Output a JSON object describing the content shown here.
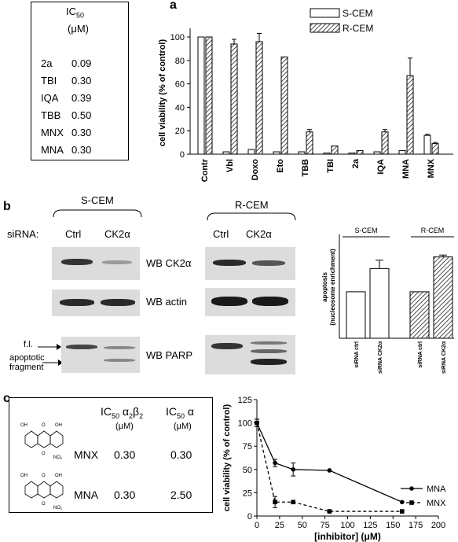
{
  "panel_a": {
    "label": "a",
    "table": {
      "header_line1": "IC",
      "header_sub": "50",
      "header_line2": "(μM)",
      "rows": [
        {
          "name": "2a",
          "value": "0.09"
        },
        {
          "name": "TBI",
          "value": "0.30"
        },
        {
          "name": "IQA",
          "value": "0.39"
        },
        {
          "name": "TBB",
          "value": "0.50"
        },
        {
          "name": "MNX",
          "value": "0.30"
        },
        {
          "name": "MNA",
          "value": "0.30"
        }
      ]
    }
  },
  "panel_b": {
    "label": "b",
    "s_cem": "S-CEM",
    "r_cem": "R-CEM",
    "sirna_label": "siRNA:",
    "lane_ctrl": "Ctrl",
    "lane_ck2": "CK2α",
    "wb_ck2": "WB CK2α",
    "wb_actin": "WB actin",
    "wb_parp": "WB PARP",
    "fl_label": "f.l.",
    "apoptotic_label_1": "apoptotic",
    "apoptotic_label_2": "fragment"
  },
  "panel_c": {
    "label": "c",
    "col1_header": "IC",
    "col1_sub": "50",
    "col1_greek": "α",
    "col1_sub2": "2",
    "col1_greek2": "β",
    "col1_sub3": "2",
    "col2_header": "IC",
    "col2_sub": "50",
    "col2_greek": "α",
    "unit": "(μM)",
    "oh_label": "OH",
    "o_label": "O",
    "no2_label": "NO",
    "no2_sub": "2",
    "rows": [
      {
        "name": "MNX",
        "v1": "0.30",
        "v2": "0.30"
      },
      {
        "name": "MNA",
        "v1": "0.30",
        "v2": "2.50"
      }
    ]
  },
  "chart_data": [
    {
      "type": "bar",
      "categories": [
        "Contr",
        "Vbl",
        "Doxo",
        "Eto",
        "TBB",
        "TBI",
        "2a",
        "IQA",
        "MNA",
        "MNX"
      ],
      "series": [
        {
          "name": "S-CEM",
          "values": [
            100,
            2,
            4,
            2,
            2,
            1,
            1,
            2,
            3,
            16
          ],
          "errors": [
            0,
            0,
            0,
            0,
            0,
            0,
            0,
            0,
            0,
            1
          ]
        },
        {
          "name": "R-CEM",
          "values": [
            100,
            94,
            96,
            83,
            19,
            7,
            3,
            19,
            67,
            9
          ],
          "errors": [
            0,
            4,
            7,
            0,
            2,
            0,
            0,
            2,
            15,
            1
          ]
        }
      ],
      "ylabel": "cell viability (% of control)",
      "yticks": [
        0,
        20,
        40,
        60,
        80,
        100
      ],
      "ylim": [
        0,
        110
      ],
      "legend": "top-right",
      "colors": {
        "S-CEM": "#ffffff",
        "R-CEM": "hatched"
      }
    },
    {
      "type": "bar",
      "categories": [
        "siRNA ctrl",
        "siRNA CK2α",
        "siRNA ctrl",
        "siRNA CK2α"
      ],
      "groups": [
        "S-CEM",
        "S-CEM",
        "R-CEM",
        "R-CEM"
      ],
      "values": [
        1.0,
        1.5,
        1.0,
        1.75
      ],
      "errors": [
        0,
        0.18,
        0,
        0.04
      ],
      "ylabel_line1": "apoptosis",
      "ylabel_line2": "(nucleosome enrichment)",
      "ylim": [
        0,
        2.2
      ]
    },
    {
      "type": "line",
      "xlabel": "[inhibitor] (μM)",
      "ylabel": "cell viability (% of control)",
      "xticks": [
        0,
        25,
        50,
        75,
        100,
        125,
        150,
        175,
        200
      ],
      "yticks": [
        0,
        25,
        50,
        75,
        100,
        125
      ],
      "xlim": [
        0,
        200
      ],
      "ylim": [
        0,
        125
      ],
      "legend": "bottom-right",
      "series": [
        {
          "name": "MNA",
          "x": [
            0,
            20,
            40,
            80,
            160
          ],
          "y": [
            100,
            57,
            50,
            49,
            15
          ],
          "errors": [
            4,
            4,
            7,
            0,
            0
          ]
        },
        {
          "name": "MNX",
          "x": [
            0,
            20,
            40,
            80,
            160
          ],
          "y": [
            100,
            15,
            15,
            5,
            5
          ],
          "errors": [
            4,
            6,
            0,
            0,
            0
          ]
        }
      ]
    }
  ]
}
